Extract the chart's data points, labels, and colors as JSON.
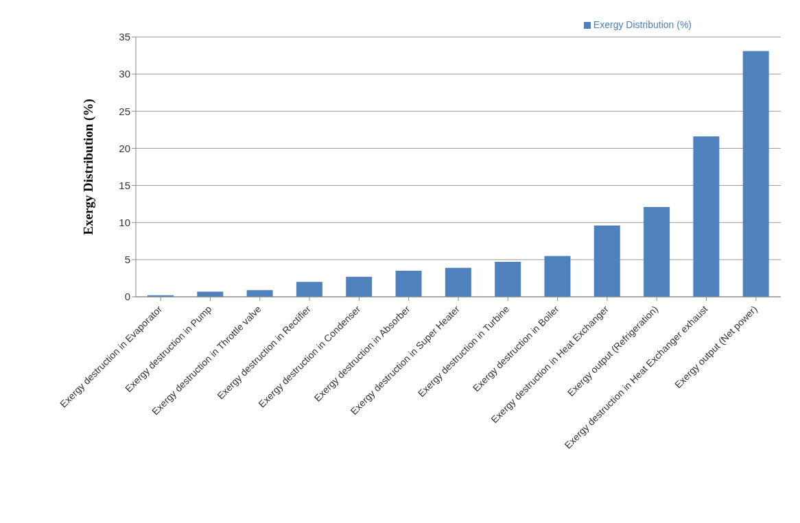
{
  "chart_data": {
    "type": "bar",
    "ylabel": "Exergy Distribution (%)",
    "categories": [
      "Exergy destruction in Evaporator",
      "Exergy destruction in Pump",
      "Exergy destruction in Throttle valve",
      "Exergy destruction in Rectifier",
      "Exergy destruction in Condenser",
      "Exergy destruction in Absorber",
      "Exergy destruction in Super Heater",
      "Exergy destruction in Turbine",
      "Exergy destruction in Boiler",
      "Exergy destruction in Heat Exchanger",
      "Exergy output (Refrigeration)",
      "Exergy destruction in Heat Exchanger exhaust",
      "Exergy output (Net power)"
    ],
    "series": [
      {
        "name": "Exergy Distribution (%)",
        "color": "#4f81bd",
        "values": [
          0.2,
          0.7,
          0.9,
          2.0,
          2.7,
          3.5,
          3.9,
          4.7,
          5.5,
          9.6,
          12.1,
          21.6,
          33.1
        ]
      }
    ],
    "ylim": [
      0,
      35
    ],
    "yticks": [
      0,
      5,
      10,
      15,
      20,
      25,
      30,
      35
    ],
    "grid": "y",
    "legend": "top right"
  }
}
